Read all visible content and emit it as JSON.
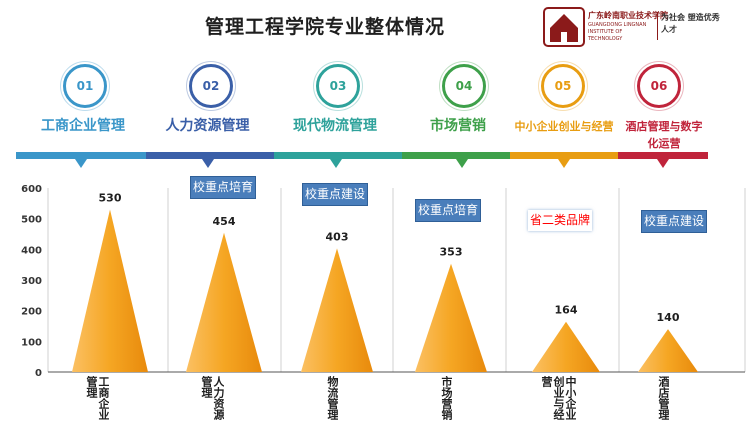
{
  "header": {
    "title": "管理工程学院专业整体情况"
  },
  "logo": {
    "school_cn": "广东岭南职业技术学院",
    "school_en": "GUANGDONG LINGNAN INSTITUTE OF TECHNOLOGY",
    "motto": "为社会 塑造优秀人才",
    "color": "#8b1a1a"
  },
  "steps": [
    {
      "num": "01",
      "label": "工商企业管理",
      "color": "#3a96c9"
    },
    {
      "num": "02",
      "label": "人力资源管理",
      "color": "#3a5fa8"
    },
    {
      "num": "03",
      "label": "现代物流管理",
      "color": "#2ea29b"
    },
    {
      "num": "04",
      "label": "市场营销",
      "color": "#3ea04a"
    },
    {
      "num": "05",
      "label": "中小企业创业与经营",
      "color": "#e89d12"
    },
    {
      "num": "06",
      "label": "酒店管理与数字化运营",
      "color": "#c0243b"
    }
  ],
  "notes": {
    "key_cultivation": "校重点培育",
    "key_construction": "校重点建设",
    "provincial_brand": "省二类品牌"
  },
  "chart_data": {
    "type": "bar",
    "bar_shape": "triangle",
    "categories": [
      "工商企业管理",
      "人力资源管理",
      "物流管理",
      "市场营销",
      "中小企业创业与经营",
      "酒店管理"
    ],
    "values": [
      530,
      454,
      403,
      353,
      164,
      140
    ],
    "yticks": [
      "0",
      "100",
      "200",
      "300",
      "400",
      "500",
      "600"
    ],
    "ylim": [
      0,
      600
    ],
    "bar_color": "#f5a623",
    "grid": false
  }
}
